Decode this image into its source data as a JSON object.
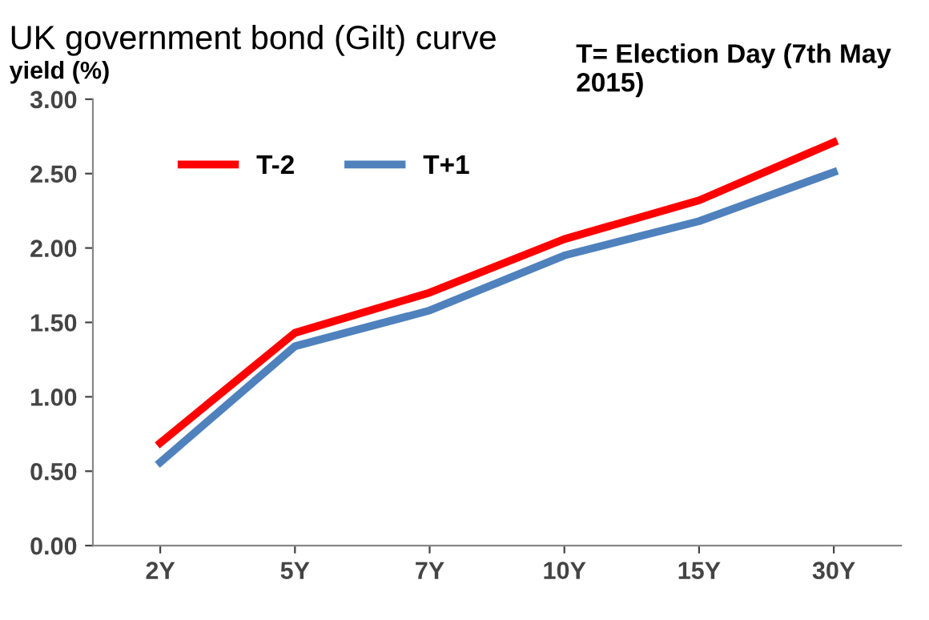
{
  "chart_data": {
    "type": "line",
    "title": "UK government bond (Gilt) curve",
    "ylabel": "yield (%)",
    "annotations": [
      "T= Election Day (7th May 2015)"
    ],
    "categories": [
      "2Y",
      "5Y",
      "7Y",
      "10Y",
      "15Y",
      "30Y"
    ],
    "series": [
      {
        "name": "T-2",
        "color": "#ff0000",
        "values": [
          0.69,
          1.43,
          1.7,
          2.06,
          2.32,
          2.71
        ]
      },
      {
        "name": "T+1",
        "color": "#4f81bd",
        "values": [
          0.56,
          1.34,
          1.58,
          1.95,
          2.18,
          2.51
        ]
      }
    ],
    "ylim": [
      0,
      3
    ],
    "yticks": [
      {
        "value": 0,
        "label": "0.00"
      },
      {
        "value": 0.5,
        "label": "0.50"
      },
      {
        "value": 1,
        "label": "1.00"
      },
      {
        "value": 1.5,
        "label": "1.50"
      },
      {
        "value": 2,
        "label": "2.00"
      },
      {
        "value": 2.5,
        "label": "2.50"
      },
      {
        "value": 3,
        "label": "3.00"
      }
    ],
    "grid": false,
    "legend": "top left",
    "marker": "none",
    "line_style": "solid"
  }
}
